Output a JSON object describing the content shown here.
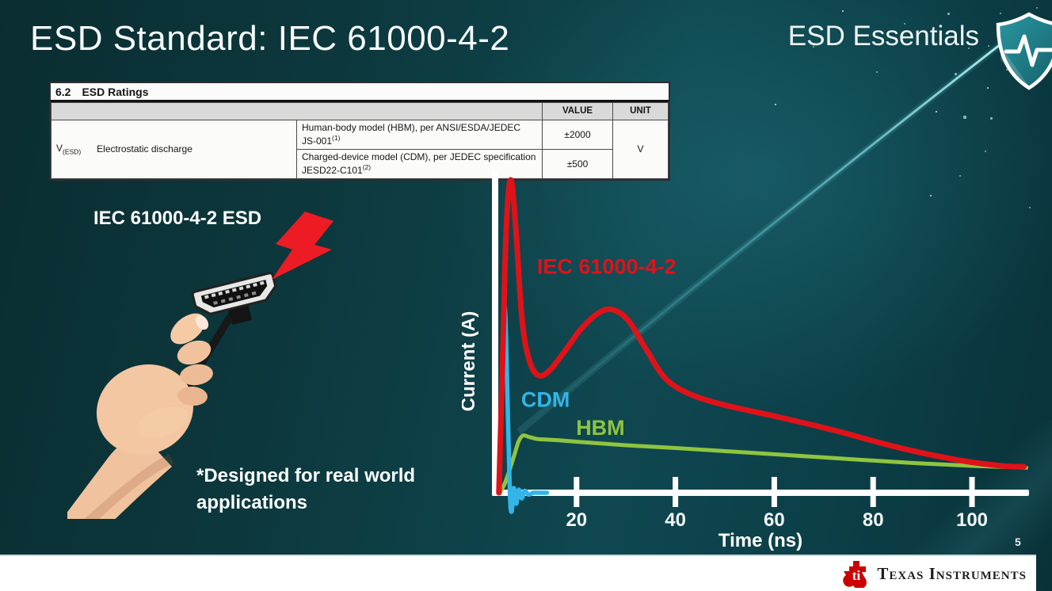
{
  "slide": {
    "title": "ESD Standard: IEC 61000-4-2",
    "program_badge": "ESD Essentials",
    "page_number": "5",
    "footer_brand": "Texas Instruments"
  },
  "ratings_table": {
    "section": "6.2",
    "heading": "ESD Ratings",
    "value_header": "VALUE",
    "unit_header": "UNIT",
    "param_symbol": "V",
    "param_symbol_sub": "(ESD)",
    "param_name": "Electrostatic discharge",
    "rows": [
      {
        "model": "Human-body model (HBM), per ANSI/ESDA/JEDEC JS-001",
        "sup": "(1)",
        "value": "±2000"
      },
      {
        "model": "Charged-device model (CDM), per JEDEC specification JESD22-C101",
        "sup": "(2)",
        "value": "±500"
      }
    ],
    "unit": "V"
  },
  "illustration": {
    "caption": "IEC 61000-4-2 ESD",
    "note_line1": "*Designed for real world",
    "note_line2": "applications"
  },
  "chart_data": {
    "type": "line",
    "title": "",
    "xlabel": "Time (ns)",
    "ylabel": "Current (A)",
    "xlim": [
      0,
      112
    ],
    "ylim": [
      -8,
      105
    ],
    "x_ticks": [
      20,
      40,
      60,
      80,
      100
    ],
    "grid": false,
    "legend": "inline-labels",
    "series": [
      {
        "name": "HBM",
        "color": "#8fc440",
        "width": 5,
        "label": {
          "x": 19.9,
          "y": 18.5
        },
        "x": [
          4.5,
          5.5,
          6.5,
          7.5,
          8.3,
          9.2,
          10.5,
          12,
          14,
          17,
          21,
          30,
          40,
          55,
          70,
          85,
          100,
          108,
          111
        ],
        "y": [
          0,
          3,
          7.5,
          12.5,
          16.5,
          18.3,
          17.8,
          17.2,
          17,
          16.7,
          16.2,
          15.2,
          14.3,
          12.8,
          11.3,
          9.8,
          8.6,
          8.2,
          8
        ]
      },
      {
        "name": "CDM",
        "color": "#33b5e8",
        "width": 5.5,
        "label": {
          "x": 8.8,
          "y": 27.5
        },
        "x": [
          4.4,
          4.9,
          5.45,
          6.0,
          6.5,
          6.9,
          7.3,
          7.8,
          8.3,
          8.9,
          9.5,
          10.3,
          11.2,
          12.5,
          14
        ],
        "y": [
          0,
          34,
          59.5,
          33,
          0,
          -6,
          1.5,
          -3.5,
          1,
          -1.8,
          0.6,
          -0.6,
          0,
          0,
          0
        ]
      },
      {
        "name": "IEC 61000-4-2",
        "color": "#df1219",
        "width": 7,
        "label": {
          "x": 12,
          "y": 70
        },
        "x": [
          4.3,
          5.0,
          5.8,
          6.7,
          7.7,
          9.0,
          10.5,
          12.3,
          14.5,
          17.5,
          21,
          24.5,
          27.3,
          30.5,
          34,
          38,
          43,
          50,
          60,
          72,
          85,
          97,
          106,
          110.5
        ],
        "y": [
          0,
          40,
          85,
          100,
          85,
          55,
          42,
          37.5,
          39,
          45,
          52.5,
          57.5,
          58.5,
          55,
          46,
          36.5,
          31.5,
          28,
          24.5,
          20,
          14.5,
          10.5,
          8.6,
          8.3
        ]
      }
    ]
  }
}
